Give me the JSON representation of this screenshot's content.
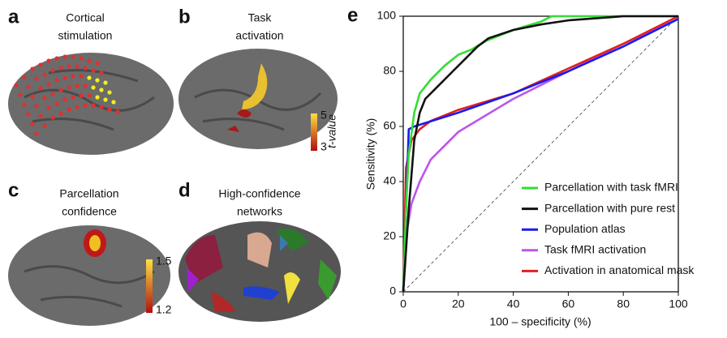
{
  "panels": [
    {
      "letter": "a",
      "title": [
        "Cortical",
        "stimulation"
      ]
    },
    {
      "letter": "b",
      "title": [
        "Task",
        "activation"
      ],
      "colorbar": {
        "label": "t-value",
        "ticks": [
          5,
          3
        ]
      }
    },
    {
      "letter": "c",
      "title": [
        "Parcellation",
        "confidence"
      ],
      "colorbar": {
        "ticks": [
          1.5,
          1.2
        ]
      }
    },
    {
      "letter": "d",
      "title": [
        "High-confidence",
        "networks"
      ]
    }
  ],
  "chart_data": {
    "type": "line",
    "panel_letter": "e",
    "xlabel": "100 – specificity (%)",
    "ylabel": "Sensitivity (%)",
    "xlim": [
      0,
      100
    ],
    "ylim": [
      0,
      100
    ],
    "xticks": [
      0,
      20,
      40,
      60,
      80,
      100
    ],
    "yticks": [
      0,
      20,
      40,
      60,
      80,
      100
    ],
    "legend": "lower-right",
    "series": [
      {
        "name": "Parcellation with task fMRI",
        "color": "#33dd33",
        "x": [
          0,
          1,
          2,
          4,
          6,
          10,
          15,
          20,
          25,
          30,
          40,
          50,
          54,
          100
        ],
        "values": [
          0,
          30,
          50,
          65,
          72,
          77,
          82,
          86,
          88,
          91,
          95,
          98,
          100,
          100
        ]
      },
      {
        "name": "Parcellation with pure rest",
        "color": "#111111",
        "x": [
          0,
          2,
          4,
          6,
          8,
          12,
          18,
          22,
          27,
          31,
          40,
          50,
          60,
          80,
          100
        ],
        "values": [
          0,
          30,
          55,
          65,
          70,
          74,
          80,
          84,
          89,
          92,
          95,
          97,
          98.5,
          100,
          100
        ]
      },
      {
        "name": "Population atlas",
        "color": "#1a1aee",
        "x": [
          0,
          2,
          4,
          20,
          40,
          60,
          80,
          100
        ],
        "values": [
          0,
          59,
          60,
          65,
          72,
          80,
          89,
          99
        ]
      },
      {
        "name": "Task fMRI activation",
        "color": "#bb55ee",
        "x": [
          0,
          1,
          3,
          6,
          10,
          20,
          30,
          40,
          60,
          80,
          100
        ],
        "values": [
          0,
          20,
          32,
          40,
          48,
          58,
          64,
          70,
          80,
          90,
          99
        ]
      },
      {
        "name": "Activation in anatomical mask",
        "color": "#e02020",
        "x": [
          0,
          1,
          3,
          6,
          10,
          20,
          40,
          60,
          80,
          100
        ],
        "values": [
          0,
          45,
          55,
          59,
          62,
          66,
          72,
          81,
          90,
          100
        ]
      }
    ]
  }
}
